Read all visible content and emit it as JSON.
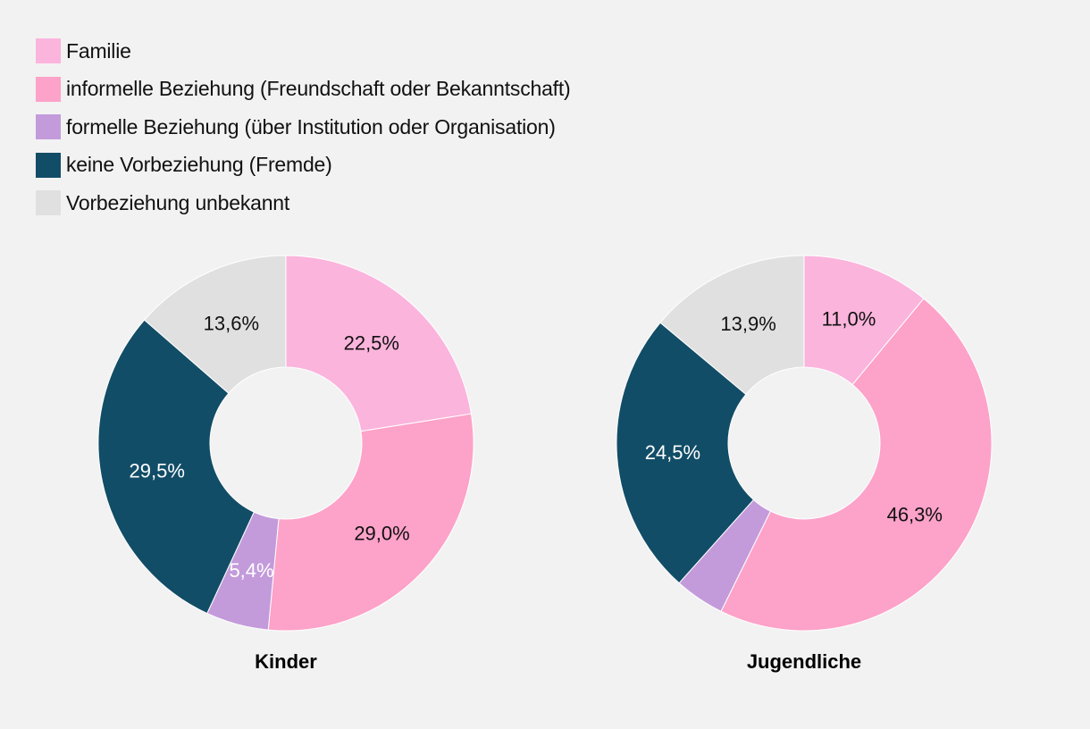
{
  "legend": {
    "items": [
      {
        "label": "Familie",
        "color": "#fbb4dc"
      },
      {
        "label": "informelle Beziehung (Freundschaft oder Bekanntschaft)",
        "color": "#fda2c9"
      },
      {
        "label": "formelle Beziehung (über Institution oder Organisation)",
        "color": "#c39bdb"
      },
      {
        "label": "keine Vorbeziehung (Fremde)",
        "color": "#124d67"
      },
      {
        "label": "Vorbeziehung unbekannt",
        "color": "#e0e0e0"
      }
    ]
  },
  "chart_data": [
    {
      "type": "pie",
      "title": "Kinder",
      "categories": [
        "Familie",
        "informelle Beziehung (Freundschaft oder Bekanntschaft)",
        "formelle Beziehung (über Institution oder Organisation)",
        "keine Vorbeziehung (Fremde)",
        "Vorbeziehung unbekannt"
      ],
      "values": [
        22.5,
        29.0,
        5.4,
        29.5,
        13.6
      ],
      "labels": [
        "22,5%",
        "29,0%",
        "5,4%",
        "29,5%",
        "13,6%"
      ],
      "label_colors": [
        "#111111",
        "#111111",
        "#ffffff",
        "#ffffff",
        "#111111"
      ]
    },
    {
      "type": "pie",
      "title": "Jugendliche",
      "categories": [
        "Familie",
        "informelle Beziehung (Freundschaft oder Bekanntschaft)",
        "formelle Beziehung (über Institution oder Organisation)",
        "keine Vorbeziehung (Fremde)",
        "Vorbeziehung unbekannt"
      ],
      "values": [
        11.0,
        46.3,
        4.3,
        24.5,
        13.9
      ],
      "labels": [
        "11,0%",
        "46,3%",
        "",
        "24,5%",
        "13,9%"
      ],
      "label_colors": [
        "#111111",
        "#111111",
        "#ffffff",
        "#ffffff",
        "#111111"
      ]
    }
  ]
}
